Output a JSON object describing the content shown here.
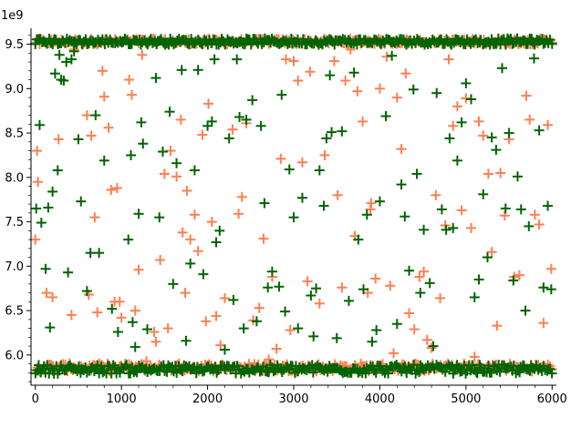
{
  "chart_data": {
    "type": "scatter",
    "title": "",
    "xlabel": "",
    "ylabel": "",
    "y_offset_label": "1e9",
    "xlim": [
      -50,
      6050
    ],
    "ylim": [
      5660000000,
      9680000000
    ],
    "x_ticks": [
      0,
      1000,
      2000,
      3000,
      4000,
      5000,
      6000
    ],
    "x_tick_labels": [
      "0",
      "1000",
      "2000",
      "3000",
      "4000",
      "5000",
      "6000"
    ],
    "y_ticks": [
      6000000000,
      6500000000,
      7000000000,
      7500000000,
      8000000000,
      8500000000,
      9000000000,
      9500000000
    ],
    "y_tick_labels": [
      "6.0",
      "6.5",
      "7.0",
      "7.5",
      "8.0",
      "8.5",
      "9.0",
      "9.5"
    ],
    "grid": false,
    "marker": "+",
    "series": [
      {
        "color": "#ff7f50",
        "bands": [
          {
            "y_center": 9530000000,
            "y_spread": 30000000,
            "x_start": 0,
            "x_end": 6000,
            "count": 260
          },
          {
            "y_center": 5860000000,
            "y_spread": 45000000,
            "x_start": 0,
            "x_end": 6000,
            "count": 260
          }
        ],
        "points": [
          [
            0,
            7300000000
          ],
          [
            20,
            8300000000
          ],
          [
            30,
            7950000000
          ],
          [
            50,
            9500000000
          ],
          [
            130,
            6700000000
          ],
          [
            200,
            6650000000
          ],
          [
            270,
            8430000000
          ],
          [
            420,
            6450000000
          ],
          [
            450,
            9440000000
          ],
          [
            480,
            9540000000
          ],
          [
            600,
            8700000000
          ],
          [
            620,
            6680000000
          ],
          [
            650,
            8470000000
          ],
          [
            690,
            7550000000
          ],
          [
            720,
            6480000000
          ],
          [
            780,
            9200000000
          ],
          [
            800,
            8910000000
          ],
          [
            850,
            8560000000
          ],
          [
            880,
            7860000000
          ],
          [
            920,
            6600000000
          ],
          [
            950,
            7880000000
          ],
          [
            980,
            6600000000
          ],
          [
            1000,
            6420000000
          ],
          [
            1090,
            9100000000
          ],
          [
            1120,
            8930000000
          ],
          [
            1160,
            6500000000
          ],
          [
            1200,
            6960000000
          ],
          [
            1240,
            9380000000
          ],
          [
            1290,
            5930000000
          ],
          [
            1380,
            6260000000
          ],
          [
            1400,
            6150000000
          ],
          [
            1450,
            7070000000
          ],
          [
            1500,
            8040000000
          ],
          [
            1540,
            6300000000
          ],
          [
            1570,
            8300000000
          ],
          [
            1640,
            8010000000
          ],
          [
            1690,
            8650000000
          ],
          [
            1710,
            7380000000
          ],
          [
            1740,
            6700000000
          ],
          [
            1760,
            7850000000
          ],
          [
            1800,
            7300000000
          ],
          [
            1850,
            7580000000
          ],
          [
            1890,
            7170000000
          ],
          [
            1940,
            8480000000
          ],
          [
            1980,
            6380000000
          ],
          [
            2010,
            8830000000
          ],
          [
            2050,
            7500000000
          ],
          [
            2100,
            6440000000
          ],
          [
            2150,
            6110000000
          ],
          [
            2200,
            6640000000
          ],
          [
            2290,
            8540000000
          ],
          [
            2360,
            7590000000
          ],
          [
            2400,
            7780000000
          ],
          [
            2450,
            8610000000
          ],
          [
            2530,
            6390000000
          ],
          [
            2600,
            6530000000
          ],
          [
            2650,
            7310000000
          ],
          [
            2710,
            5950000000
          ],
          [
            2750,
            6880000000
          ],
          [
            2800,
            6070000000
          ],
          [
            2850,
            8210000000
          ],
          [
            2910,
            9330000000
          ],
          [
            2960,
            6280000000
          ],
          [
            3000,
            9310000000
          ],
          [
            3050,
            9090000000
          ],
          [
            3100,
            8170000000
          ],
          [
            3160,
            6830000000
          ],
          [
            3190,
            9190000000
          ],
          [
            3300,
            6580000000
          ],
          [
            3360,
            8250000000
          ],
          [
            3470,
            9310000000
          ],
          [
            3510,
            7800000000
          ],
          [
            3560,
            6760000000
          ],
          [
            3600,
            9090000000
          ],
          [
            3660,
            9440000000
          ],
          [
            3710,
            7340000000
          ],
          [
            3740,
            8970000000
          ],
          [
            3800,
            8630000000
          ],
          [
            3860,
            6700000000
          ],
          [
            3890,
            7640000000
          ],
          [
            3900,
            7710000000
          ],
          [
            3950,
            6860000000
          ],
          [
            4000,
            9000000000
          ],
          [
            4080,
            9360000000
          ],
          [
            4120,
            6780000000
          ],
          [
            4160,
            6020000000
          ],
          [
            4200,
            8900000000
          ],
          [
            4250,
            8320000000
          ],
          [
            4300,
            9170000000
          ],
          [
            4340,
            6470000000
          ],
          [
            4400,
            6290000000
          ],
          [
            4460,
            6880000000
          ],
          [
            4510,
            6940000000
          ],
          [
            4550,
            6170000000
          ],
          [
            4600,
            6080000000
          ],
          [
            4650,
            7800000000
          ],
          [
            4700,
            6640000000
          ],
          [
            4760,
            7460000000
          ],
          [
            4800,
            9330000000
          ],
          [
            4850,
            8580000000
          ],
          [
            4900,
            8800000000
          ],
          [
            4950,
            7630000000
          ],
          [
            5000,
            8890000000
          ],
          [
            5060,
            7430000000
          ],
          [
            5100,
            5980000000
          ],
          [
            5150,
            8630000000
          ],
          [
            5200,
            8470000000
          ],
          [
            5260,
            8040000000
          ],
          [
            5300,
            7160000000
          ],
          [
            5360,
            6330000000
          ],
          [
            5400,
            8050000000
          ],
          [
            5450,
            7570000000
          ],
          [
            5500,
            8430000000
          ],
          [
            5560,
            6880000000
          ],
          [
            5620,
            6900000000
          ],
          [
            5700,
            8920000000
          ],
          [
            5740,
            8650000000
          ],
          [
            5800,
            7580000000
          ],
          [
            5850,
            7470000000
          ],
          [
            5900,
            6360000000
          ],
          [
            5950,
            8590000000
          ],
          [
            5990,
            6970000000
          ]
        ]
      },
      {
        "color": "#006400",
        "bands": [
          {
            "y_center": 9530000000,
            "y_spread": 35000000,
            "x_start": 0,
            "x_end": 6000,
            "count": 300
          },
          {
            "y_center": 5840000000,
            "y_spread": 50000000,
            "x_start": 0,
            "x_end": 6000,
            "count": 300
          }
        ],
        "points": [
          [
            10,
            7650000000
          ],
          [
            50,
            8590000000
          ],
          [
            70,
            7490000000
          ],
          [
            120,
            6970000000
          ],
          [
            150,
            7660000000
          ],
          [
            170,
            6310000000
          ],
          [
            200,
            7840000000
          ],
          [
            230,
            9170000000
          ],
          [
            260,
            8080000000
          ],
          [
            280,
            9380000000
          ],
          [
            300,
            9100000000
          ],
          [
            330,
            9090000000
          ],
          [
            360,
            9300000000
          ],
          [
            380,
            6930000000
          ],
          [
            420,
            9330000000
          ],
          [
            450,
            9420000000
          ],
          [
            500,
            8430000000
          ],
          [
            530,
            7730000000
          ],
          [
            600,
            6720000000
          ],
          [
            640,
            7150000000
          ],
          [
            700,
            8700000000
          ],
          [
            740,
            7150000000
          ],
          [
            800,
            8190000000
          ],
          [
            890,
            6520000000
          ],
          [
            960,
            6260000000
          ],
          [
            1080,
            7300000000
          ],
          [
            1110,
            8250000000
          ],
          [
            1130,
            6370000000
          ],
          [
            1160,
            6090000000
          ],
          [
            1200,
            7590000000
          ],
          [
            1230,
            8620000000
          ],
          [
            1250,
            8380000000
          ],
          [
            1300,
            6290000000
          ],
          [
            1400,
            9120000000
          ],
          [
            1440,
            7550000000
          ],
          [
            1480,
            8290000000
          ],
          [
            1560,
            8740000000
          ],
          [
            1600,
            6800000000
          ],
          [
            1640,
            8160000000
          ],
          [
            1700,
            9210000000
          ],
          [
            1750,
            6160000000
          ],
          [
            1800,
            7030000000
          ],
          [
            1850,
            8080000000
          ],
          [
            1890,
            9210000000
          ],
          [
            1950,
            6910000000
          ],
          [
            2000,
            8580000000
          ],
          [
            2050,
            8630000000
          ],
          [
            2080,
            9330000000
          ],
          [
            2100,
            7270000000
          ],
          [
            2140,
            7400000000
          ],
          [
            2200,
            6060000000
          ],
          [
            2250,
            8440000000
          ],
          [
            2300,
            6620000000
          ],
          [
            2340,
            9330000000
          ],
          [
            2370,
            8680000000
          ],
          [
            2420,
            6300000000
          ],
          [
            2450,
            8650000000
          ],
          [
            2520,
            8870000000
          ],
          [
            2570,
            6380000000
          ],
          [
            2620,
            8580000000
          ],
          [
            2660,
            7710000000
          ],
          [
            2700,
            6760000000
          ],
          [
            2750,
            6940000000
          ],
          [
            2830,
            6770000000
          ],
          [
            2860,
            8930000000
          ],
          [
            2900,
            6490000000
          ],
          [
            2950,
            8090000000
          ],
          [
            3000,
            7550000000
          ],
          [
            3050,
            6300000000
          ],
          [
            3100,
            7770000000
          ],
          [
            3200,
            6670000000
          ],
          [
            3230,
            6210000000
          ],
          [
            3260,
            6750000000
          ],
          [
            3300,
            8080000000
          ],
          [
            3350,
            7680000000
          ],
          [
            3380,
            8440000000
          ],
          [
            3420,
            9150000000
          ],
          [
            3440,
            8510000000
          ],
          [
            3500,
            6190000000
          ],
          [
            3560,
            8520000000
          ],
          [
            3640,
            6610000000
          ],
          [
            3700,
            9180000000
          ],
          [
            3750,
            7300000000
          ],
          [
            3810,
            6740000000
          ],
          [
            3850,
            7580000000
          ],
          [
            3910,
            6150000000
          ],
          [
            3960,
            6280000000
          ],
          [
            4000,
            7730000000
          ],
          [
            4070,
            8690000000
          ],
          [
            4140,
            9370000000
          ],
          [
            4200,
            6350000000
          ],
          [
            4250,
            7920000000
          ],
          [
            4290,
            7560000000
          ],
          [
            4340,
            6950000000
          ],
          [
            4390,
            8990000000
          ],
          [
            4430,
            8040000000
          ],
          [
            4470,
            6700000000
          ],
          [
            4510,
            7410000000
          ],
          [
            4580,
            6810000000
          ],
          [
            4620,
            6100000000
          ],
          [
            4660,
            8950000000
          ],
          [
            4720,
            7640000000
          ],
          [
            4770,
            7410000000
          ],
          [
            4810,
            8440000000
          ],
          [
            4850,
            7430000000
          ],
          [
            4900,
            8190000000
          ],
          [
            4950,
            8620000000
          ],
          [
            5000,
            9060000000
          ],
          [
            5060,
            8880000000
          ],
          [
            5100,
            6650000000
          ],
          [
            5150,
            6850000000
          ],
          [
            5200,
            7810000000
          ],
          [
            5250,
            7100000000
          ],
          [
            5300,
            8450000000
          ],
          [
            5350,
            8310000000
          ],
          [
            5420,
            9230000000
          ],
          [
            5460,
            7650000000
          ],
          [
            5500,
            8500000000
          ],
          [
            5550,
            6840000000
          ],
          [
            5600,
            8010000000
          ],
          [
            5640,
            7640000000
          ],
          [
            5690,
            6500000000
          ],
          [
            5730,
            7450000000
          ],
          [
            5790,
            9340000000
          ],
          [
            5850,
            8530000000
          ],
          [
            5900,
            6760000000
          ],
          [
            5950,
            7680000000
          ],
          [
            5990,
            6740000000
          ]
        ]
      }
    ]
  }
}
